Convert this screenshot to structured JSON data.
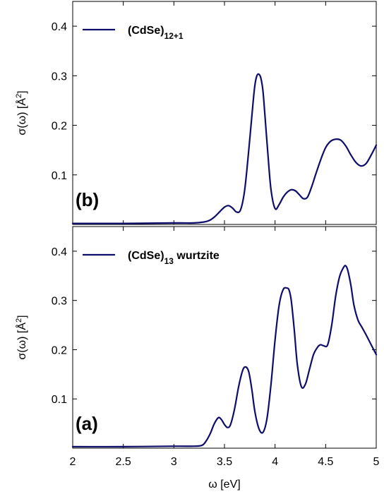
{
  "chart_data": [
    {
      "type": "line",
      "panel_label": "(b)",
      "xlabel": "",
      "ylabel_main": "σ(ω) [Å",
      "ylabel_sup": "2",
      "ylabel_end": "]",
      "xlim": [
        2,
        5
      ],
      "ylim": [
        0,
        0.45
      ],
      "x_ticks": [
        2,
        2.5,
        3,
        3.5,
        4,
        4.5,
        5
      ],
      "y_ticks": [
        0.1,
        0.2,
        0.3,
        0.4
      ],
      "y_tick_labels": [
        "0.1",
        "0.2",
        "0.3",
        "0.4"
      ],
      "show_x_tick_labels": false,
      "grid": false,
      "legend_position": "top-left",
      "series": [
        {
          "name_base": "(CdSe)",
          "name_sub": "12+1",
          "name_tail": "",
          "color": "#0d0d6b",
          "x": [
            2.0,
            2.5,
            3.0,
            3.2,
            3.3,
            3.35,
            3.4,
            3.45,
            3.5,
            3.54,
            3.58,
            3.62,
            3.66,
            3.7,
            3.74,
            3.78,
            3.8,
            3.82,
            3.84,
            3.86,
            3.88,
            3.9,
            3.93,
            3.96,
            4.0,
            4.04,
            4.08,
            4.12,
            4.16,
            4.2,
            4.24,
            4.28,
            4.32,
            4.36,
            4.4,
            4.45,
            4.5,
            4.55,
            4.6,
            4.65,
            4.7,
            4.75,
            4.8,
            4.85,
            4.9,
            4.95,
            5.0
          ],
          "y": [
            0.002,
            0.002,
            0.003,
            0.003,
            0.005,
            0.008,
            0.015,
            0.025,
            0.035,
            0.038,
            0.033,
            0.025,
            0.03,
            0.07,
            0.15,
            0.24,
            0.28,
            0.3,
            0.303,
            0.295,
            0.27,
            0.22,
            0.14,
            0.07,
            0.032,
            0.04,
            0.055,
            0.065,
            0.07,
            0.068,
            0.06,
            0.052,
            0.055,
            0.075,
            0.1,
            0.13,
            0.155,
            0.168,
            0.172,
            0.17,
            0.158,
            0.14,
            0.125,
            0.118,
            0.123,
            0.14,
            0.16
          ]
        }
      ]
    },
    {
      "type": "line",
      "panel_label": "(a)",
      "xlabel": "ω [eV]",
      "ylabel_main": "σ(ω) [Å",
      "ylabel_sup": "2",
      "ylabel_end": "]",
      "xlim": [
        2,
        5
      ],
      "ylim": [
        0,
        0.45
      ],
      "x_ticks": [
        2,
        2.5,
        3,
        3.5,
        4,
        4.5,
        5
      ],
      "x_tick_labels": [
        "2",
        "2.5",
        "3",
        "3.5",
        "4",
        "4.5",
        "5"
      ],
      "y_ticks": [
        0.1,
        0.2,
        0.3,
        0.4
      ],
      "y_tick_labels": [
        "0.1",
        "0.2",
        "0.3",
        "0.4"
      ],
      "show_x_tick_labels": true,
      "grid": false,
      "legend_position": "top-left",
      "series": [
        {
          "name_base": "(CdSe)",
          "name_sub": "13",
          "name_tail": " wurtzite",
          "color": "#0d0d6b",
          "x": [
            2.0,
            2.5,
            3.0,
            3.2,
            3.28,
            3.32,
            3.36,
            3.4,
            3.44,
            3.47,
            3.5,
            3.53,
            3.56,
            3.6,
            3.64,
            3.68,
            3.71,
            3.74,
            3.77,
            3.8,
            3.84,
            3.88,
            3.92,
            3.96,
            4.0,
            4.04,
            4.08,
            4.12,
            4.14,
            4.16,
            4.19,
            4.22,
            4.26,
            4.3,
            4.34,
            4.38,
            4.42,
            4.45,
            4.48,
            4.52,
            4.56,
            4.6,
            4.64,
            4.68,
            4.7,
            4.72,
            4.75,
            4.78,
            4.82,
            4.86,
            4.9,
            4.95,
            5.0
          ],
          "y": [
            0.003,
            0.003,
            0.004,
            0.004,
            0.006,
            0.015,
            0.03,
            0.05,
            0.062,
            0.058,
            0.048,
            0.042,
            0.048,
            0.08,
            0.125,
            0.158,
            0.165,
            0.155,
            0.12,
            0.075,
            0.04,
            0.032,
            0.06,
            0.13,
            0.22,
            0.29,
            0.322,
            0.325,
            0.32,
            0.3,
            0.24,
            0.17,
            0.125,
            0.13,
            0.16,
            0.19,
            0.205,
            0.21,
            0.208,
            0.21,
            0.25,
            0.31,
            0.35,
            0.368,
            0.37,
            0.36,
            0.33,
            0.29,
            0.26,
            0.245,
            0.23,
            0.21,
            0.19
          ]
        }
      ]
    }
  ]
}
